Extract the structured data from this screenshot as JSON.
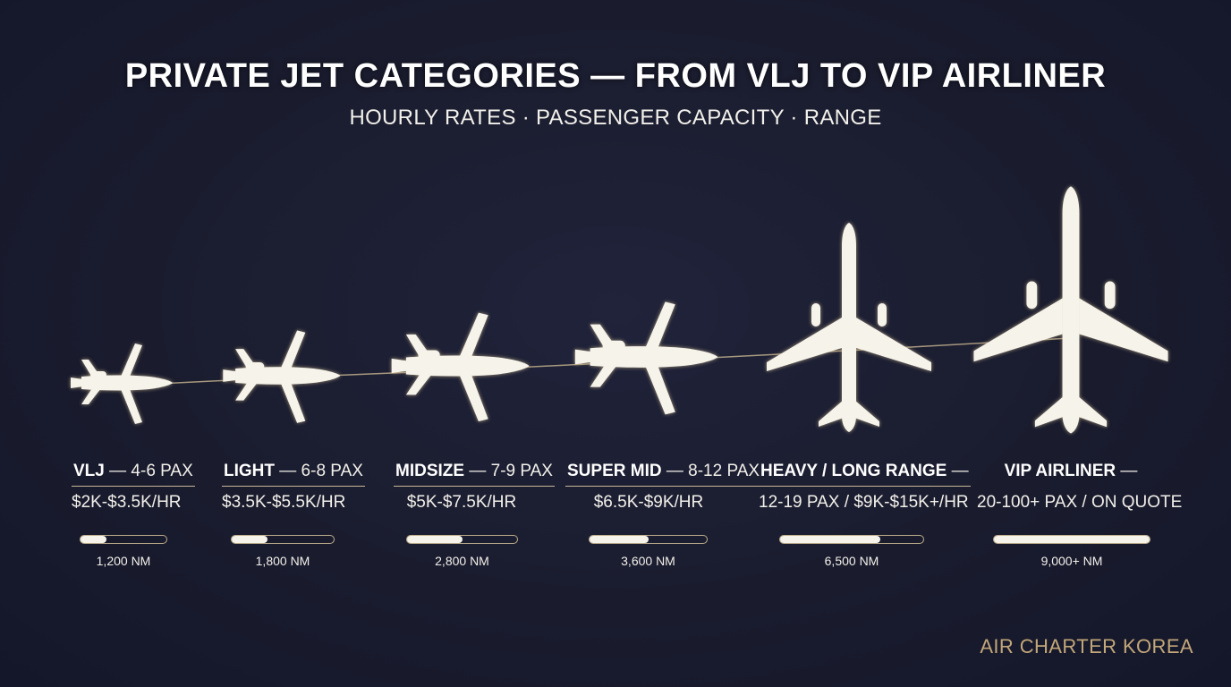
{
  "header": {
    "title": "PRIVATE JET CATEGORIES — FROM VLJ TO VIP AIRLINER",
    "subtitle": "HOURLY RATES · PASSENGER CAPACITY · RANGE"
  },
  "categories": [
    {
      "name": "VLJ",
      "pax": "— 4-6 PAX",
      "rate": "$2K-$3.5K/HR",
      "range": "1,200 NM",
      "range_nm": 1200
    },
    {
      "name": "LIGHT",
      "pax": "— 6-8 PAX",
      "rate": "$3.5K-$5.5K/HR",
      "range": "1,800 NM",
      "range_nm": 1800
    },
    {
      "name": "MIDSIZE",
      "pax": "— 7-9 PAX",
      "rate": "$5K-$7.5K/HR",
      "range": "2,800 NM",
      "range_nm": 2800
    },
    {
      "name": "SUPER MID",
      "pax": "— 8-12 PAX",
      "rate": "$6.5K-$9K/HR",
      "range": "3,600 NM",
      "range_nm": 3600
    },
    {
      "name": "HEAVY / LONG RANGE",
      "pax": "—",
      "rate": "12-19 PAX / $9K-$15K+/HR",
      "range": "6,500 NM",
      "range_nm": 6500
    },
    {
      "name": "VIP AIRLINER",
      "pax": "—",
      "rate": "20-100+ PAX / ON QUOTE",
      "range": "9,000+ NM",
      "range_nm": 9000
    }
  ],
  "range_bar_fill": [
    0.3,
    0.35,
    0.5,
    0.5,
    0.7,
    1.0
  ],
  "colors": {
    "background": "#1a1c2e",
    "aircraft": "#f6f3ea",
    "accent": "#c2a779"
  },
  "brand": "AIR CHARTER KOREA"
}
